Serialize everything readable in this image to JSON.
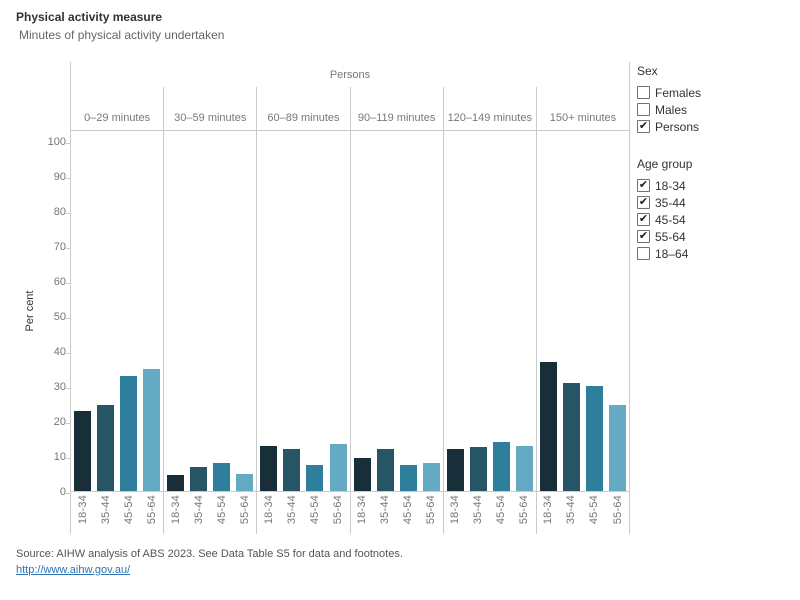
{
  "title": "Physical activity measure",
  "subtitle": "Minutes of physical activity undertaken",
  "chart_data": {
    "type": "bar",
    "group_header": "Persons",
    "ylabel": "Per cent",
    "ylim": [
      0,
      100
    ],
    "yticks": [
      0,
      10,
      20,
      30,
      40,
      50,
      60,
      70,
      80,
      90,
      100
    ],
    "categories": [
      "18-34",
      "35-44",
      "45-54",
      "55-64"
    ],
    "bar_colors": [
      "#182f39",
      "#275565",
      "#2e7f9b",
      "#64aac3"
    ],
    "series": [
      {
        "panel": "0–29 minutes",
        "values": [
          23,
          24.5,
          33,
          35
        ]
      },
      {
        "panel": "30–59 minutes",
        "values": [
          4.5,
          7,
          8,
          5
        ]
      },
      {
        "panel": "60–89 minutes",
        "values": [
          13,
          12,
          7.5,
          13.5
        ]
      },
      {
        "panel": "90–119 minutes",
        "values": [
          9.5,
          12,
          7.5,
          8
        ]
      },
      {
        "panel": "120–149 minutes",
        "values": [
          12,
          12.5,
          14,
          13
        ]
      },
      {
        "panel": "150+ minutes",
        "values": [
          37,
          31,
          30,
          24.5
        ]
      }
    ],
    "legend_position": "right",
    "grid": false
  },
  "legend": {
    "sex": {
      "title": "Sex",
      "options": [
        {
          "label": "Females",
          "checked": false
        },
        {
          "label": "Males",
          "checked": false
        },
        {
          "label": "Persons",
          "checked": true
        }
      ]
    },
    "age_group": {
      "title": "Age group",
      "options": [
        {
          "label": "18-34",
          "checked": true
        },
        {
          "label": "35-44",
          "checked": true
        },
        {
          "label": "45-54",
          "checked": true
        },
        {
          "label": "55-64",
          "checked": true
        },
        {
          "label": "18–64",
          "checked": false
        }
      ]
    }
  },
  "source": {
    "text": "Source: AIHW analysis of ABS 2023. See Data Table S5 for data and footnotes.",
    "link": "http://www.aihw.gov.au/"
  }
}
